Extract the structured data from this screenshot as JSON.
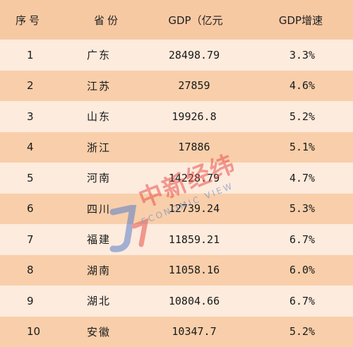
{
  "colors": {
    "header_bg": "#f7c9a3",
    "row_light": "#fdebdd",
    "row_dark": "#f8cfaa",
    "watermark_red": "#e8534f",
    "watermark_blue": "#5a7fc8"
  },
  "table": {
    "headers": {
      "rank": "序号",
      "province": "省份",
      "gdp": "GDP（亿元",
      "growth": "GDP增速"
    },
    "rows": [
      {
        "rank": "1",
        "province": "广东",
        "gdp": "28498.79",
        "growth": "3.3%"
      },
      {
        "rank": "2",
        "province": "江苏",
        "gdp": "27859",
        "growth": "4.6%"
      },
      {
        "rank": "3",
        "province": "山东",
        "gdp": "19926.8",
        "growth": "5.2%"
      },
      {
        "rank": "4",
        "province": "浙江",
        "gdp": "17886",
        "growth": "5.1%"
      },
      {
        "rank": "5",
        "province": "河南",
        "gdp": "14228.79",
        "growth": "4.7%"
      },
      {
        "rank": "6",
        "province": "四川",
        "gdp": "12739.24",
        "growth": "5.3%"
      },
      {
        "rank": "7",
        "province": "福建",
        "gdp": "11859.21",
        "growth": "6.7%"
      },
      {
        "rank": "8",
        "province": "湖南",
        "gdp": "11058.16",
        "growth": "6.0%"
      },
      {
        "rank": "9",
        "province": "湖北",
        "gdp": "10804.66",
        "growth": "6.7%"
      },
      {
        "rank": "10",
        "province": "安徽",
        "gdp": "10347.7",
        "growth": "5.2%"
      }
    ]
  },
  "watermark": {
    "logo_text": "中新经纬",
    "sub_text": "ECONOMIC VIEW",
    "icon": "jw-logo-icon"
  }
}
